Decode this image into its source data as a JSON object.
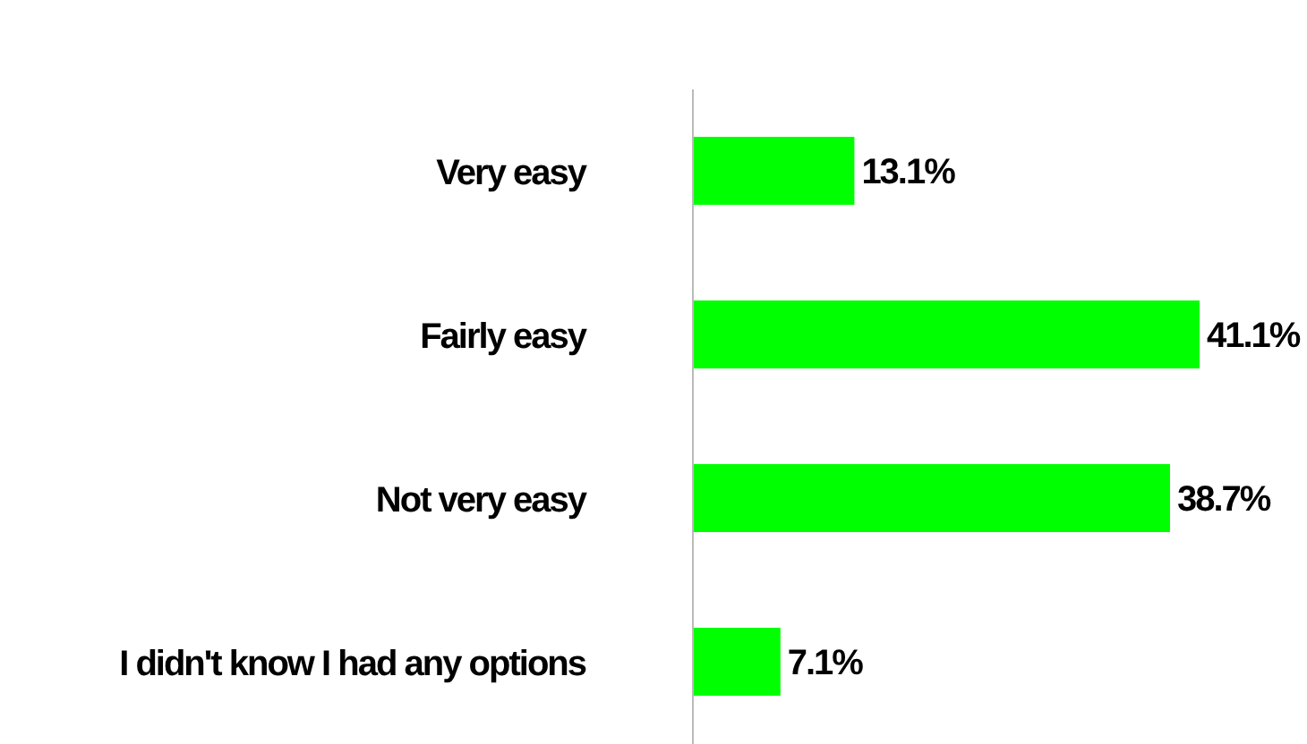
{
  "chart_data": {
    "type": "bar",
    "orientation": "horizontal",
    "categories": [
      "Very easy",
      "Fairly easy",
      "Not very easy",
      "I didn't know I had any options"
    ],
    "values": [
      13.1,
      41.1,
      38.7,
      7.1
    ],
    "value_labels": [
      "13.1%",
      "41.1%",
      "38.7%",
      "7.1%"
    ],
    "color": "#00ff00",
    "grid": false,
    "legend": false
  }
}
